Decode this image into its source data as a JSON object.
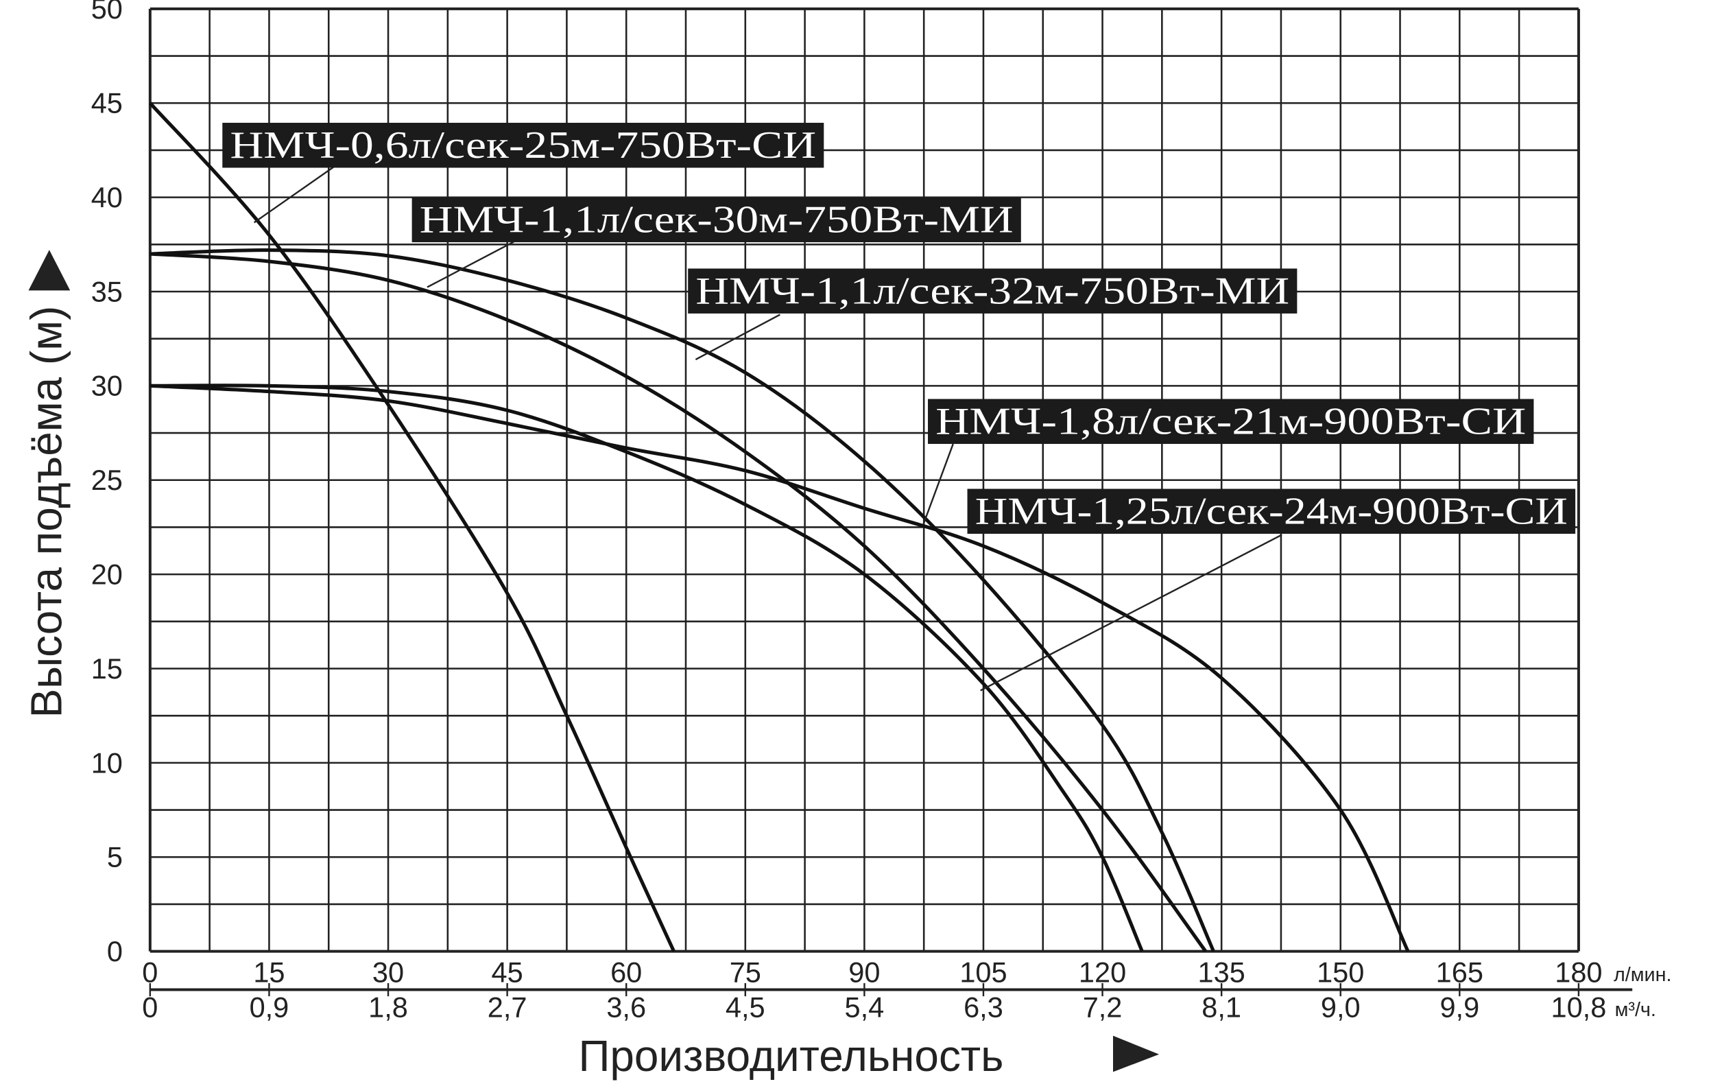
{
  "chart_data": {
    "type": "line",
    "xlabel": "Производительность",
    "ylabel": "Высота подъёма (м)",
    "x_unit": "л/мин.",
    "x2_unit": "м³/ч.",
    "xlim": [
      0,
      180
    ],
    "ylim": [
      0,
      50
    ],
    "grid": true,
    "x_ticks": [
      "0",
      "15",
      "30",
      "45",
      "60",
      "75",
      "90",
      "105",
      "120",
      "135",
      "150",
      "165",
      "180"
    ],
    "x2_ticks": [
      "0",
      "0,9",
      "1,8",
      "2,7",
      "3,6",
      "4,5",
      "5,4",
      "6,3",
      "7,2",
      "8,1",
      "9,0",
      "9,9",
      "10,8"
    ],
    "y_ticks": [
      "0",
      "5",
      "10",
      "15",
      "20",
      "25",
      "30",
      "35",
      "40",
      "45",
      "50"
    ],
    "series": [
      {
        "name": "НМЧ-0,6л/сек-25м-750Вт-СИ",
        "points": [
          [
            0,
            45
          ],
          [
            15,
            38
          ],
          [
            30,
            29
          ],
          [
            45,
            19
          ],
          [
            52.5,
            12.5
          ],
          [
            60,
            5.5
          ],
          [
            66,
            0
          ]
        ]
      },
      {
        "name": "НМЧ-1,1л/сек-30м-750Вт-МИ",
        "points": [
          [
            0,
            37
          ],
          [
            15,
            36.6
          ],
          [
            30,
            35.6
          ],
          [
            45,
            33.5
          ],
          [
            60,
            30.5
          ],
          [
            75,
            26.5
          ],
          [
            90,
            21.5
          ],
          [
            105,
            15
          ],
          [
            120,
            7.5
          ],
          [
            133,
            0
          ]
        ]
      },
      {
        "name": "НМЧ-1,1л/сек-32м-750Вт-МИ",
        "points": [
          [
            0,
            37
          ],
          [
            15,
            37.2
          ],
          [
            30,
            36.9
          ],
          [
            45,
            35.6
          ],
          [
            60,
            33.6
          ],
          [
            75,
            30.7
          ],
          [
            90,
            26
          ],
          [
            105,
            19.7
          ],
          [
            120,
            12
          ],
          [
            127.5,
            6.3
          ],
          [
            134,
            0
          ]
        ]
      },
      {
        "name": "НМЧ-1,8л/сек-21м-900Вт-СИ",
        "points": [
          [
            0,
            30
          ],
          [
            15,
            29.7
          ],
          [
            30,
            29.2
          ],
          [
            45,
            28
          ],
          [
            60,
            26.7
          ],
          [
            75,
            25.5
          ],
          [
            90,
            23.5
          ],
          [
            105,
            21.5
          ],
          [
            120,
            18.5
          ],
          [
            135,
            14.5
          ],
          [
            150,
            7.5
          ],
          [
            158.5,
            0
          ]
        ]
      },
      {
        "name": "НМЧ-1,25л/сек-24м-900Вт-СИ",
        "points": [
          [
            0,
            30
          ],
          [
            15,
            30
          ],
          [
            30,
            29.7
          ],
          [
            45,
            28.7
          ],
          [
            60,
            26.5
          ],
          [
            75,
            23.7
          ],
          [
            90,
            20
          ],
          [
            105,
            14.2
          ],
          [
            115,
            8.5
          ],
          [
            120,
            5
          ],
          [
            125,
            0
          ]
        ]
      }
    ]
  }
}
